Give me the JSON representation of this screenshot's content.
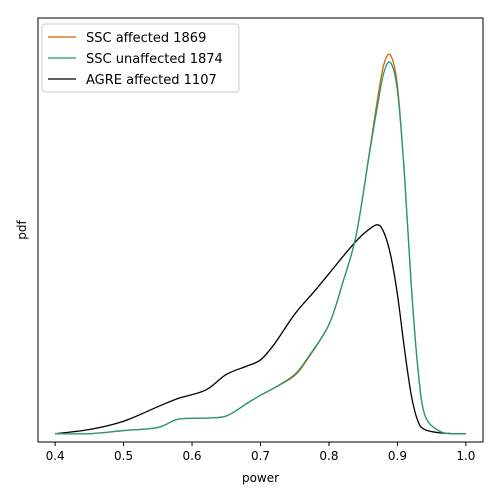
{
  "chart_data": {
    "type": "line",
    "title": "",
    "xlabel": "power",
    "ylabel": "pdf",
    "xlim": [
      0.375,
      1.025
    ],
    "ylim": [
      -0.08,
      4.0
    ],
    "xticks": [
      0.4,
      0.5,
      0.6,
      0.7,
      0.8,
      0.9,
      1.0
    ],
    "xtick_labels": [
      "0.4",
      "0.5",
      "0.6",
      "0.7",
      "0.8",
      "0.9",
      "1.0"
    ],
    "yticks_visible": false,
    "grid": false,
    "legend_position": "top-left",
    "series": [
      {
        "name": "SSC affected 1869",
        "color": "#d95f02",
        "points": [
          [
            0.4,
            0.0
          ],
          [
            0.45,
            0.0
          ],
          [
            0.5,
            0.03
          ],
          [
            0.55,
            0.06
          ],
          [
            0.58,
            0.14
          ],
          [
            0.62,
            0.15
          ],
          [
            0.65,
            0.17
          ],
          [
            0.68,
            0.29
          ],
          [
            0.7,
            0.37
          ],
          [
            0.72,
            0.44
          ],
          [
            0.75,
            0.56
          ],
          [
            0.77,
            0.73
          ],
          [
            0.8,
            1.05
          ],
          [
            0.82,
            1.45
          ],
          [
            0.84,
            1.92
          ],
          [
            0.86,
            2.75
          ],
          [
            0.87,
            3.18
          ],
          [
            0.88,
            3.55
          ],
          [
            0.89,
            3.64
          ],
          [
            0.9,
            3.35
          ],
          [
            0.91,
            2.52
          ],
          [
            0.92,
            1.45
          ],
          [
            0.93,
            0.62
          ],
          [
            0.94,
            0.18
          ],
          [
            0.96,
            0.03
          ],
          [
            0.98,
            0.0
          ],
          [
            1.0,
            0.0
          ]
        ]
      },
      {
        "name": "SSC unaffected 1874",
        "color": "#1b9e77",
        "points": [
          [
            0.4,
            0.0
          ],
          [
            0.45,
            0.0
          ],
          [
            0.5,
            0.03
          ],
          [
            0.55,
            0.06
          ],
          [
            0.58,
            0.14
          ],
          [
            0.62,
            0.15
          ],
          [
            0.65,
            0.17
          ],
          [
            0.68,
            0.29
          ],
          [
            0.7,
            0.37
          ],
          [
            0.72,
            0.44
          ],
          [
            0.75,
            0.57
          ],
          [
            0.77,
            0.74
          ],
          [
            0.8,
            1.05
          ],
          [
            0.82,
            1.45
          ],
          [
            0.84,
            1.92
          ],
          [
            0.86,
            2.73
          ],
          [
            0.87,
            3.12
          ],
          [
            0.88,
            3.47
          ],
          [
            0.89,
            3.57
          ],
          [
            0.9,
            3.3
          ],
          [
            0.91,
            2.52
          ],
          [
            0.92,
            1.45
          ],
          [
            0.93,
            0.62
          ],
          [
            0.94,
            0.18
          ],
          [
            0.96,
            0.03
          ],
          [
            0.98,
            0.0
          ],
          [
            1.0,
            0.0
          ]
        ]
      },
      {
        "name": "AGRE affected 1107",
        "color": "#000000",
        "points": [
          [
            0.4,
            0.0
          ],
          [
            0.45,
            0.04
          ],
          [
            0.5,
            0.12
          ],
          [
            0.55,
            0.26
          ],
          [
            0.58,
            0.34
          ],
          [
            0.62,
            0.42
          ],
          [
            0.65,
            0.57
          ],
          [
            0.68,
            0.65
          ],
          [
            0.7,
            0.71
          ],
          [
            0.72,
            0.86
          ],
          [
            0.75,
            1.15
          ],
          [
            0.78,
            1.38
          ],
          [
            0.8,
            1.54
          ],
          [
            0.83,
            1.78
          ],
          [
            0.85,
            1.92
          ],
          [
            0.87,
            2.01
          ],
          [
            0.88,
            1.94
          ],
          [
            0.89,
            1.72
          ],
          [
            0.9,
            1.34
          ],
          [
            0.91,
            0.83
          ],
          [
            0.92,
            0.38
          ],
          [
            0.93,
            0.12
          ],
          [
            0.94,
            0.04
          ],
          [
            0.96,
            0.01
          ],
          [
            0.98,
            0.0
          ],
          [
            1.0,
            0.0
          ]
        ]
      }
    ]
  }
}
